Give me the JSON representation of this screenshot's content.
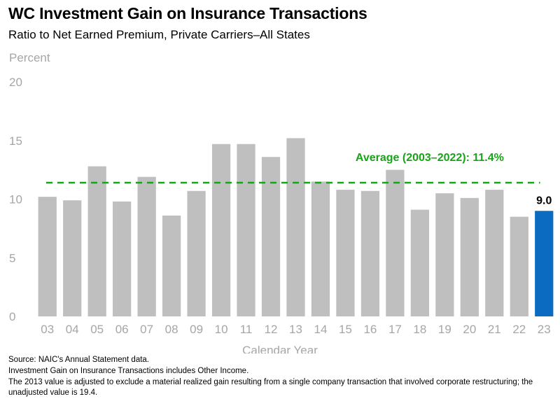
{
  "chart_data": {
    "type": "bar",
    "title": "WC Investment Gain on Insurance Transactions",
    "subtitle": "Ratio to Net Earned Premium, Private Carriers–All States",
    "ylabel": "Percent",
    "xlabel": "Calendar Year",
    "ylim": [
      0,
      20
    ],
    "yticks": [
      "0",
      "5",
      "10",
      "15",
      "20"
    ],
    "categories": [
      "03",
      "04",
      "05",
      "06",
      "07",
      "08",
      "09",
      "10",
      "11",
      "12",
      "13",
      "14",
      "15",
      "16",
      "17",
      "18",
      "19",
      "20",
      "21",
      "22",
      "23"
    ],
    "values": [
      10.2,
      9.9,
      12.8,
      9.8,
      11.9,
      8.6,
      10.7,
      14.7,
      14.7,
      13.6,
      15.2,
      11.5,
      10.8,
      10.7,
      12.5,
      9.1,
      10.5,
      10.1,
      10.8,
      8.5,
      9.0
    ],
    "highlight_index": 20,
    "highlight_label": "9.0",
    "average": 11.4,
    "average_label": "Average (2003–2022): 11.4%",
    "colors": {
      "bar": "#bfbfbf",
      "highlight": "#0b6bc1",
      "average": "#19a319",
      "axis_text": "#a6a6a6"
    }
  },
  "footnotes": {
    "source": "Source: NAIC's Annual Statement data.",
    "note1": "Investment Gain on Insurance Transactions includes Other Income.",
    "note2": "The 2013 value is adjusted to exclude a material realized gain resulting from a single company transaction that involved corporate restructuring; the unadjusted value is 19.4."
  }
}
